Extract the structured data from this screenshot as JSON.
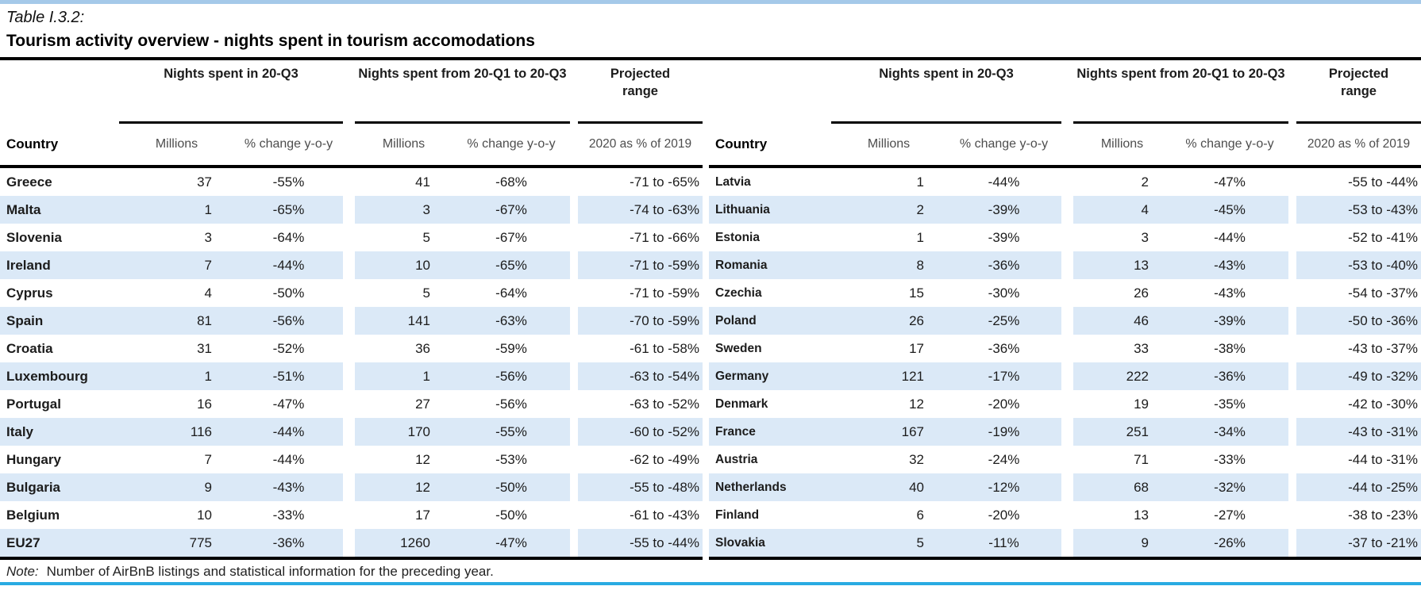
{
  "title_label": "Table I.3.2:",
  "title": "Tourism activity overview - nights spent in tourism accomodations",
  "note": {
    "label": "Note:",
    "text": "Number of AirBnB listings and statistical information for the preceding year."
  },
  "colors": {
    "row_alt_blue": "#dbe9f7",
    "top_rule_blue": "#a5c9e9",
    "bottom_rule_cyan": "#29abe2",
    "rule_black": "#000000",
    "subheader_gray": "#4d4d4d"
  },
  "columns": {
    "country": "Country",
    "group1": "Nights spent in 20-Q3",
    "group2": "Nights spent from 20-Q1 to 20-Q3",
    "group3": "Projected range",
    "millions": "Millions",
    "pct_change": "% change y-o-y",
    "projected_sub": "2020 as % of 2019"
  },
  "left_table": {
    "rows": [
      {
        "country": "Greece",
        "m1": "37",
        "c1": "-55%",
        "m2": "41",
        "c2": "-68%",
        "range": "-71 to -65%"
      },
      {
        "country": "Malta",
        "m1": "1",
        "c1": "-65%",
        "m2": "3",
        "c2": "-67%",
        "range": "-74 to -63%"
      },
      {
        "country": "Slovenia",
        "m1": "3",
        "c1": "-64%",
        "m2": "5",
        "c2": "-67%",
        "range": "-71 to -66%"
      },
      {
        "country": "Ireland",
        "m1": "7",
        "c1": "-44%",
        "m2": "10",
        "c2": "-65%",
        "range": "-71 to -59%"
      },
      {
        "country": "Cyprus",
        "m1": "4",
        "c1": "-50%",
        "m2": "5",
        "c2": "-64%",
        "range": "-71 to -59%"
      },
      {
        "country": "Spain",
        "m1": "81",
        "c1": "-56%",
        "m2": "141",
        "c2": "-63%",
        "range": "-70 to -59%"
      },
      {
        "country": "Croatia",
        "m1": "31",
        "c1": "-52%",
        "m2": "36",
        "c2": "-59%",
        "range": "-61 to -58%"
      },
      {
        "country": "Luxembourg",
        "m1": "1",
        "c1": "-51%",
        "m2": "1",
        "c2": "-56%",
        "range": "-63 to -54%"
      },
      {
        "country": "Portugal",
        "m1": "16",
        "c1": "-47%",
        "m2": "27",
        "c2": "-56%",
        "range": "-63 to -52%"
      },
      {
        "country": "Italy",
        "m1": "116",
        "c1": "-44%",
        "m2": "170",
        "c2": "-55%",
        "range": "-60 to -52%"
      },
      {
        "country": "Hungary",
        "m1": "7",
        "c1": "-44%",
        "m2": "12",
        "c2": "-53%",
        "range": "-62 to -49%"
      },
      {
        "country": "Bulgaria",
        "m1": "9",
        "c1": "-43%",
        "m2": "12",
        "c2": "-50%",
        "range": "-55 to -48%"
      },
      {
        "country": "Belgium",
        "m1": "10",
        "c1": "-33%",
        "m2": "17",
        "c2": "-50%",
        "range": "-61 to -43%"
      },
      {
        "country": "EU27",
        "m1": "775",
        "c1": "-36%",
        "m2": "1260",
        "c2": "-47%",
        "range": "-55 to -44%"
      }
    ]
  },
  "right_table": {
    "rows": [
      {
        "country": "Latvia",
        "m1": "1",
        "c1": "-44%",
        "m2": "2",
        "c2": "-47%",
        "range": "-55 to -44%"
      },
      {
        "country": "Lithuania",
        "m1": "2",
        "c1": "-39%",
        "m2": "4",
        "c2": "-45%",
        "range": "-53 to -43%"
      },
      {
        "country": "Estonia",
        "m1": "1",
        "c1": "-39%",
        "m2": "3",
        "c2": "-44%",
        "range": "-52 to -41%"
      },
      {
        "country": "Romania",
        "m1": "8",
        "c1": "-36%",
        "m2": "13",
        "c2": "-43%",
        "range": "-53 to -40%"
      },
      {
        "country": "Czechia",
        "m1": "15",
        "c1": "-30%",
        "m2": "26",
        "c2": "-43%",
        "range": "-54 to -37%"
      },
      {
        "country": "Poland",
        "m1": "26",
        "c1": "-25%",
        "m2": "46",
        "c2": "-39%",
        "range": "-50 to -36%"
      },
      {
        "country": "Sweden",
        "m1": "17",
        "c1": "-36%",
        "m2": "33",
        "c2": "-38%",
        "range": "-43 to -37%"
      },
      {
        "country": "Germany",
        "m1": "121",
        "c1": "-17%",
        "m2": "222",
        "c2": "-36%",
        "range": "-49 to -32%"
      },
      {
        "country": "Denmark",
        "m1": "12",
        "c1": "-20%",
        "m2": "19",
        "c2": "-35%",
        "range": "-42 to -30%"
      },
      {
        "country": "France",
        "m1": "167",
        "c1": "-19%",
        "m2": "251",
        "c2": "-34%",
        "range": "-43 to -31%"
      },
      {
        "country": "Austria",
        "m1": "32",
        "c1": "-24%",
        "m2": "71",
        "c2": "-33%",
        "range": "-44 to -31%"
      },
      {
        "country": "Netherlands",
        "m1": "40",
        "c1": "-12%",
        "m2": "68",
        "c2": "-32%",
        "range": "-44 to -25%"
      },
      {
        "country": "Finland",
        "m1": "6",
        "c1": "-20%",
        "m2": "13",
        "c2": "-27%",
        "range": "-38 to -23%"
      },
      {
        "country": "Slovakia",
        "m1": "5",
        "c1": "-11%",
        "m2": "9",
        "c2": "-26%",
        "range": "-37 to -21%"
      }
    ]
  }
}
